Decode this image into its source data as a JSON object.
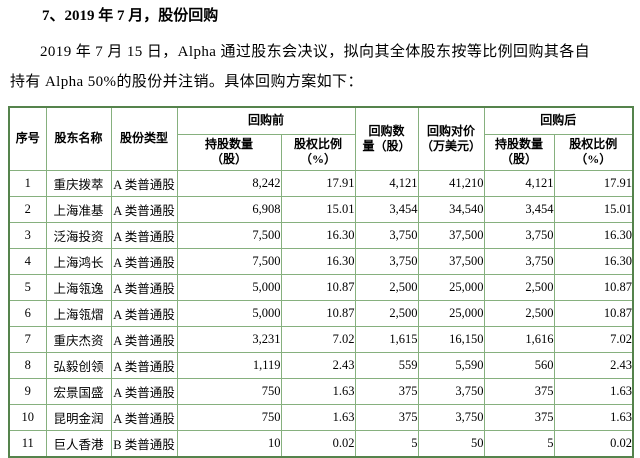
{
  "document": {
    "title": "7、2019 年 7 月，股份回购",
    "paragraph": "2019 年 7 月 15 日，Alpha 通过股东会决议，拟向其全体股东按等比例回购其各自\n持有 Alpha 50%的股份并注销。具体回购方案如下："
  },
  "table": {
    "headers": {
      "seq": "序号",
      "shareholder": "股东名称",
      "share_type": "股份类型",
      "before_group": "回购前",
      "after_group": "回购后",
      "holding_qty": "持股数量\n（股）",
      "equity_ratio": "股权比例\n（%）",
      "buyback_qty": "回购数\n量（股）",
      "buyback_price": "回购对价\n（万美元）"
    },
    "rows": [
      {
        "seq": "1",
        "name": "重庆拨萃",
        "type": "A 类普通股",
        "before_qty": "8,242",
        "before_ratio": "17.91",
        "qty": "4,121",
        "price": "41,210",
        "after_qty": "4,121",
        "after_ratio": "17.91"
      },
      {
        "seq": "2",
        "name": "上海准基",
        "type": "A 类普通股",
        "before_qty": "6,908",
        "before_ratio": "15.01",
        "qty": "3,454",
        "price": "34,540",
        "after_qty": "3,454",
        "after_ratio": "15.01"
      },
      {
        "seq": "3",
        "name": "泛海投资",
        "type": "A 类普通股",
        "before_qty": "7,500",
        "before_ratio": "16.30",
        "qty": "3,750",
        "price": "37,500",
        "after_qty": "3,750",
        "after_ratio": "16.30"
      },
      {
        "seq": "4",
        "name": "上海鸿长",
        "type": "A 类普通股",
        "before_qty": "7,500",
        "before_ratio": "16.30",
        "qty": "3,750",
        "price": "37,500",
        "after_qty": "3,750",
        "after_ratio": "16.30"
      },
      {
        "seq": "5",
        "name": "上海瓴逸",
        "type": "A 类普通股",
        "before_qty": "5,000",
        "before_ratio": "10.87",
        "qty": "2,500",
        "price": "25,000",
        "after_qty": "2,500",
        "after_ratio": "10.87"
      },
      {
        "seq": "6",
        "name": "上海瓴熠",
        "type": "A 类普通股",
        "before_qty": "5,000",
        "before_ratio": "10.87",
        "qty": "2,500",
        "price": "25,000",
        "after_qty": "2,500",
        "after_ratio": "10.87"
      },
      {
        "seq": "7",
        "name": "重庆杰资",
        "type": "A 类普通股",
        "before_qty": "3,231",
        "before_ratio": "7.02",
        "qty": "1,615",
        "price": "16,150",
        "after_qty": "1,616",
        "after_ratio": "7.02"
      },
      {
        "seq": "8",
        "name": "弘毅创领",
        "type": "A 类普通股",
        "before_qty": "1,119",
        "before_ratio": "2.43",
        "qty": "559",
        "price": "5,590",
        "after_qty": "560",
        "after_ratio": "2.43"
      },
      {
        "seq": "9",
        "name": "宏景国盛",
        "type": "A 类普通股",
        "before_qty": "750",
        "before_ratio": "1.63",
        "qty": "375",
        "price": "3,750",
        "after_qty": "375",
        "after_ratio": "1.63"
      },
      {
        "seq": "10",
        "name": "昆明金润",
        "type": "A 类普通股",
        "before_qty": "750",
        "before_ratio": "1.63",
        "qty": "375",
        "price": "3,750",
        "after_qty": "375",
        "after_ratio": "1.63"
      },
      {
        "seq": "11",
        "name": "巨人香港",
        "type": "B 类普通股",
        "before_qty": "10",
        "before_ratio": "0.02",
        "qty": "5",
        "price": "50",
        "after_qty": "5",
        "after_ratio": "0.02"
      }
    ]
  },
  "colors": {
    "table_border_outer": "#55834c",
    "table_border_inner": "#86b07e",
    "text": "#000000",
    "background": "#ffffff"
  }
}
